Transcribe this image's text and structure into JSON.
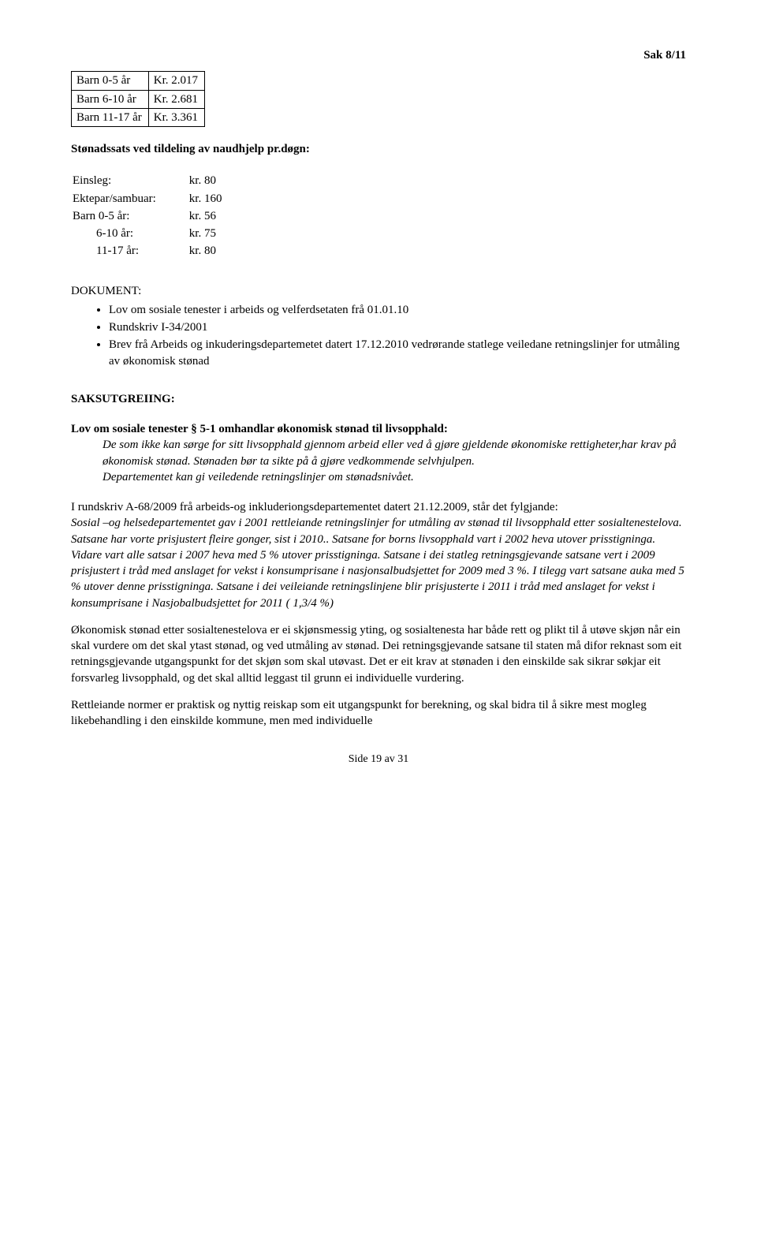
{
  "header": {
    "case_ref": "Sak 8/11"
  },
  "rate_table": {
    "rows": [
      {
        "label": "Barn  0-5 år",
        "value": "Kr. 2.017"
      },
      {
        "label": "Barn  6-10 år",
        "value": "Kr. 2.681"
      },
      {
        "label": "Barn  11-17 år",
        "value": "Kr. 3.361"
      }
    ]
  },
  "stonadssats": {
    "title": "Stønadssats ved tildeling av naudhjelp pr.døgn:",
    "rows": [
      {
        "label": "Einsleg:",
        "value": "kr.   80"
      },
      {
        "label": "Ektepar/sambuar:",
        "value": "kr. 160"
      },
      {
        "label": "Barn 0-5  år:",
        "value": "kr.   56"
      },
      {
        "label": "        6-10 år:",
        "value": "kr.   75"
      },
      {
        "label": "        11-17 år:",
        "value": "kr.   80"
      }
    ]
  },
  "dokument": {
    "heading": "DOKUMENT:",
    "items": [
      "Lov om sosiale tenester i arbeids og velferdsetaten frå 01.01.10",
      "Rundskriv I-34/2001",
      "Brev frå Arbeids og inkuderingsdepartemetet datert 17.12.2010 vedrørande statlege veiledane retningslinjer for utmåling av økonomisk stønad"
    ]
  },
  "saksutgreiing": {
    "heading": "SAKSUTGREIING:",
    "lov_title": "Lov om sosiale tenester § 5-1 omhandlar økonomisk stønad til livsopphald:",
    "lov_body_1": "De som ikke kan sørge for sitt livsopphald gjennom arbeid eller ved å gjøre gjeldende økonomiske rettigheter,har krav på økonomisk stønad. Stønaden bør ta sikte på å gjøre vedkommende selvhjulpen.",
    "lov_body_2": "Departementet kan gi veiledende retningslinjer om stønadsnivået."
  },
  "para1": {
    "lead": "I rundskriv A-68/2009 frå arbeids-og inkluderiongsdepartementet datert 21.12.2009, står det fylgjande:",
    "italic": "Sosial –og helsedepartementet gav i 2001 rettleiande retningslinjer for utmåling av stønad til livsopphald etter sosialtenestelova. Satsane har vorte prisjustert fleire gonger, sist i 2010.. Satsane for borns livsopphald vart i 2002 heva utover prisstigninga. Vidare vart alle satsar i 2007 heva med 5 % utover prisstigninga. Satsane i dei statleg retningsgjevande satsane vert i 2009 prisjustert i tråd med anslaget for vekst i konsumprisane i nasjonsalbudsjettet for 2009 med 3 %. I tilegg vart satsane auka med 5 % utover denne prisstigninga. Satsane i dei veileiande retningslinjene blir prisjusterte i 2011 i tråd med anslaget for vekst i konsumprisane i Nasjobalbudsjettet for 2011 ( 1,3/4 %)"
  },
  "para2": "Økonomisk stønad etter sosialtenestelova er ei skjønsmessig yting, og sosialtenesta har både rett og plikt til å utøve skjøn når ein skal vurdere om det skal ytast stønad, og ved utmåling av stønad. Dei retningsgjevande satsane til staten må difor reknast som eit retningsgjevande utgangspunkt for det skjøn som skal utøvast.  Det er eit krav at stønaden i den einskilde sak sikrar søkjar eit forsvarleg livsopphald, og det skal alltid leggast til grunn ei individuelle vurdering.",
  "para3": "Rettleiande normer er praktisk og nyttig reiskap som eit utgangspunkt for berekning, og skal bidra til å sikre mest mogleg likebehandling i den einskilde kommune, men med individuelle",
  "footer": {
    "page": "Side 19 av 31"
  }
}
